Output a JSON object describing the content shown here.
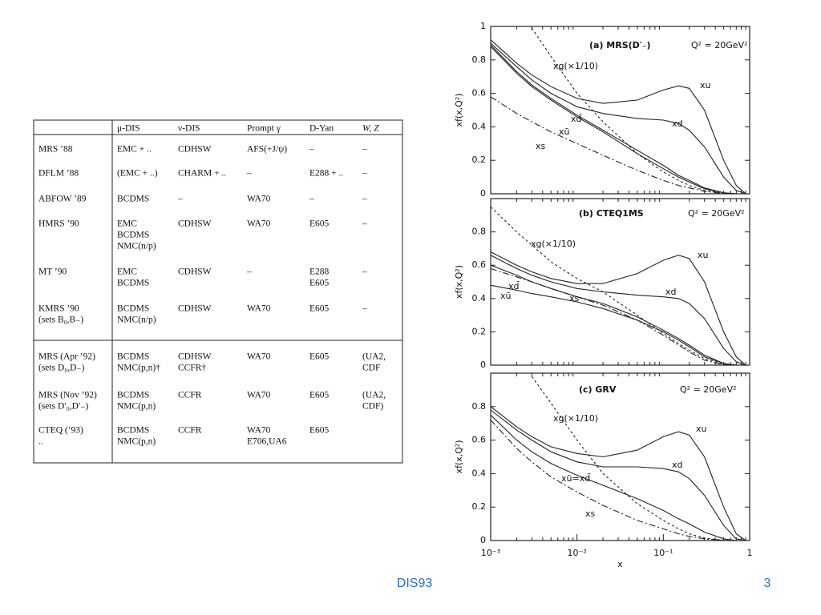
{
  "table": {
    "header": [
      [
        "μ-DIS"
      ],
      [
        "ν-DIS"
      ],
      [
        "Prompt γ"
      ],
      [
        "D-Yan"
      ],
      [
        "W, Z"
      ]
    ],
    "rows": [
      [
        [
          "MRS ’88"
        ],
        [
          "EMC + .."
        ],
        [
          "CDHSW"
        ],
        [
          "AFS(+J/ψ)"
        ],
        [
          "–"
        ],
        [
          "–"
        ]
      ],
      [
        [
          "DFLM ’88"
        ],
        [
          "(EMC + ..)"
        ],
        [
          "CHARM + .."
        ],
        [
          "–"
        ],
        [
          "E288 + .."
        ],
        [
          "–"
        ]
      ],
      [
        [
          "ABFOW ’89"
        ],
        [
          "BCDMS"
        ],
        [
          "–"
        ],
        [
          "WA70"
        ],
        [
          "–"
        ],
        [
          "–"
        ]
      ],
      [
        [
          "HMRS ’90"
        ],
        [
          "EMC",
          "BCDMS",
          "NMC(n/p)"
        ],
        [
          "CDHSW"
        ],
        [
          "WA70"
        ],
        [
          "E605"
        ],
        [
          "–"
        ]
      ],
      [
        [
          "MT ’90"
        ],
        [
          "EMC",
          "BCDMS"
        ],
        [
          "CDHSW"
        ],
        [
          "–"
        ],
        [
          "E288",
          "E605"
        ],
        [
          "–"
        ]
      ],
      [
        [
          "KMRS ’90",
          "(sets B₀,B₋)"
        ],
        [
          "BCDMS",
          "NMC(n/p)"
        ],
        [
          "CDHSW"
        ],
        [
          "WA70"
        ],
        [
          "E605"
        ],
        [
          "–"
        ]
      ],
      [
        [
          "MRS (Apr ’92)",
          "(sets D₀,D₋)"
        ],
        [
          "BCDMS",
          "NMC(p,n)†"
        ],
        [
          "CDHSW",
          "CCFR†"
        ],
        [
          "WA70"
        ],
        [
          "E605"
        ],
        [
          "(UA2,",
          "CDF"
        ]
      ],
      [
        [
          "MRS (Nov ’92)",
          "(sets D′₀,D′₋)"
        ],
        [
          "BCDMS",
          "NMC(p,n)"
        ],
        [
          "CCFR"
        ],
        [
          "WA70"
        ],
        [
          "E605"
        ],
        [
          "(UA2,",
          "CDF)"
        ]
      ],
      [
        [
          "CTEQ (’93)",
          ".."
        ],
        [
          "BCDMS",
          "NMC(p,n)"
        ],
        [
          "CCFR"
        ],
        [
          "WA70",
          "E706,UA6"
        ],
        [
          "E605"
        ],
        []
      ]
    ]
  },
  "chart_data": [
    {
      "type": "line",
      "title": "(a) MRS(D′₋)",
      "annotation": "Q² = 20GeV²",
      "y_label": "xf(x,Q²)",
      "x_log": true,
      "xlim": [
        0.001,
        1
      ],
      "ylim": [
        0,
        1
      ],
      "yticks": [
        0,
        0.2,
        0.4,
        0.6,
        0.8,
        1
      ],
      "x": [
        0.001,
        0.002,
        0.003,
        0.005,
        0.01,
        0.02,
        0.05,
        0.1,
        0.15,
        0.2,
        0.3,
        0.5,
        0.7,
        0.9
      ],
      "series": [
        {
          "name": "xu",
          "color": "#222",
          "dash": "solid",
          "values": [
            0.92,
            0.78,
            0.71,
            0.64,
            0.57,
            0.54,
            0.56,
            0.62,
            0.645,
            0.63,
            0.5,
            0.2,
            0.05,
            0
          ]
        },
        {
          "name": "xd",
          "color": "#222",
          "dash": "solid",
          "values": [
            0.9,
            0.76,
            0.68,
            0.6,
            0.52,
            0.48,
            0.45,
            0.44,
            0.42,
            0.38,
            0.28,
            0.1,
            0.02,
            0
          ]
        },
        {
          "name": "xd̄",
          "color": "#222",
          "dash": "solid",
          "values": [
            0.89,
            0.73,
            0.65,
            0.57,
            0.47,
            0.38,
            0.26,
            0.17,
            0.11,
            0.08,
            0.035,
            0.006,
            0,
            null
          ]
        },
        {
          "name": "xū",
          "color": "#222",
          "dash": "solid",
          "values": [
            0.88,
            0.72,
            0.64,
            0.56,
            0.46,
            0.37,
            0.24,
            0.15,
            0.1,
            0.07,
            0.03,
            0.005,
            0,
            null
          ]
        },
        {
          "name": "xs",
          "color": "#222",
          "dash": "dashdot",
          "values": [
            0.58,
            0.48,
            0.43,
            0.37,
            0.3,
            0.23,
            0.14,
            0.08,
            0.05,
            0.035,
            0.015,
            0.002,
            0,
            null
          ]
        },
        {
          "name": "xg(×1/10)",
          "color": "#222",
          "dash": "dashed",
          "values": [
            null,
            null,
            0.99,
            0.82,
            0.6,
            0.43,
            0.24,
            0.13,
            0.08,
            0.05,
            0.02,
            0.003,
            0,
            null
          ]
        }
      ]
    },
    {
      "type": "line",
      "title": "(b) CTEQ1MS",
      "annotation": "Q² = 20GeV²",
      "y_label": "xf(x,Q²)",
      "x_log": true,
      "xlim": [
        0.001,
        1
      ],
      "ylim": [
        0,
        1
      ],
      "yticks": [
        0,
        0.2,
        0.4,
        0.6,
        0.8
      ],
      "x": [
        0.001,
        0.002,
        0.003,
        0.005,
        0.01,
        0.02,
        0.05,
        0.1,
        0.15,
        0.2,
        0.3,
        0.5,
        0.7,
        0.9
      ],
      "series": [
        {
          "name": "xu",
          "color": "#222",
          "dash": "solid",
          "values": [
            0.68,
            0.6,
            0.56,
            0.52,
            0.49,
            0.49,
            0.55,
            0.63,
            0.66,
            0.64,
            0.5,
            0.2,
            0.05,
            0
          ]
        },
        {
          "name": "xd",
          "color": "#222",
          "dash": "solid",
          "values": [
            0.66,
            0.58,
            0.54,
            0.5,
            0.46,
            0.44,
            0.42,
            0.41,
            0.4,
            0.37,
            0.28,
            0.1,
            0.02,
            0
          ]
        },
        {
          "name": "xd̄",
          "color": "#222",
          "dash": "solid",
          "values": [
            0.6,
            0.54,
            0.5,
            0.46,
            0.41,
            0.37,
            0.29,
            0.21,
            0.16,
            0.12,
            0.06,
            0.01,
            0,
            null
          ]
        },
        {
          "name": "xū",
          "color": "#222",
          "dash": "solid",
          "values": [
            0.48,
            0.45,
            0.43,
            0.41,
            0.38,
            0.34,
            0.27,
            0.2,
            0.15,
            0.11,
            0.05,
            0.01,
            0,
            null
          ]
        },
        {
          "name": "xs",
          "color": "#222",
          "dash": "dashdot",
          "values": [
            0.58,
            0.53,
            0.5,
            0.46,
            0.41,
            0.36,
            0.27,
            0.18,
            0.12,
            0.08,
            0.03,
            0.003,
            0,
            null
          ]
        },
        {
          "name": "xg(×1/10)",
          "color": "#222",
          "dash": "dashed",
          "values": [
            0.95,
            0.8,
            0.72,
            0.62,
            0.52,
            0.44,
            0.3,
            0.19,
            0.13,
            0.09,
            0.04,
            0.005,
            0,
            null
          ]
        }
      ]
    },
    {
      "type": "line",
      "title": "(c) GRV",
      "annotation": "Q² = 20GeV²",
      "y_label": "xf(x,Q²)",
      "x_label": "x",
      "x_log": true,
      "xlim": [
        0.001,
        1
      ],
      "ylim": [
        0,
        1
      ],
      "yticks": [
        0,
        0.2,
        0.4,
        0.6,
        0.8
      ],
      "xticks": [
        {
          "value": 0.001,
          "label": "10⁻³"
        },
        {
          "value": 0.01,
          "label": "10⁻²"
        },
        {
          "value": 0.1,
          "label": "10⁻¹"
        },
        1
      ],
      "x": [
        0.001,
        0.002,
        0.003,
        0.005,
        0.01,
        0.02,
        0.05,
        0.1,
        0.15,
        0.2,
        0.3,
        0.5,
        0.7,
        0.9
      ],
      "series": [
        {
          "name": "xu",
          "color": "#222",
          "dash": "solid",
          "values": [
            0.8,
            0.68,
            0.62,
            0.56,
            0.52,
            0.5,
            0.54,
            0.62,
            0.65,
            0.63,
            0.5,
            0.2,
            0.04,
            0
          ]
        },
        {
          "name": "xd",
          "color": "#222",
          "dash": "solid",
          "values": [
            0.78,
            0.66,
            0.6,
            0.53,
            0.47,
            0.44,
            0.44,
            0.43,
            0.41,
            0.37,
            0.27,
            0.09,
            0.01,
            0
          ]
        },
        {
          "name": "xū=xd̄",
          "color": "#222",
          "dash": "solid",
          "values": [
            0.75,
            0.6,
            0.53,
            0.46,
            0.39,
            0.33,
            0.25,
            0.18,
            0.13,
            0.1,
            0.05,
            0.01,
            0,
            null
          ]
        },
        {
          "name": "xs",
          "color": "#222",
          "dash": "dashdot",
          "values": [
            0.72,
            0.55,
            0.47,
            0.38,
            0.29,
            0.21,
            0.12,
            0.07,
            0.04,
            0.025,
            0.01,
            0.001,
            0,
            null
          ]
        },
        {
          "name": "xg(×1/10)",
          "color": "#222",
          "dash": "dashed",
          "values": [
            null,
            null,
            0.98,
            0.82,
            0.6,
            0.4,
            0.22,
            0.12,
            0.07,
            0.04,
            0.015,
            0.002,
            0,
            null
          ]
        }
      ]
    }
  ],
  "footer": {
    "label": "DIS93",
    "page": "3"
  }
}
